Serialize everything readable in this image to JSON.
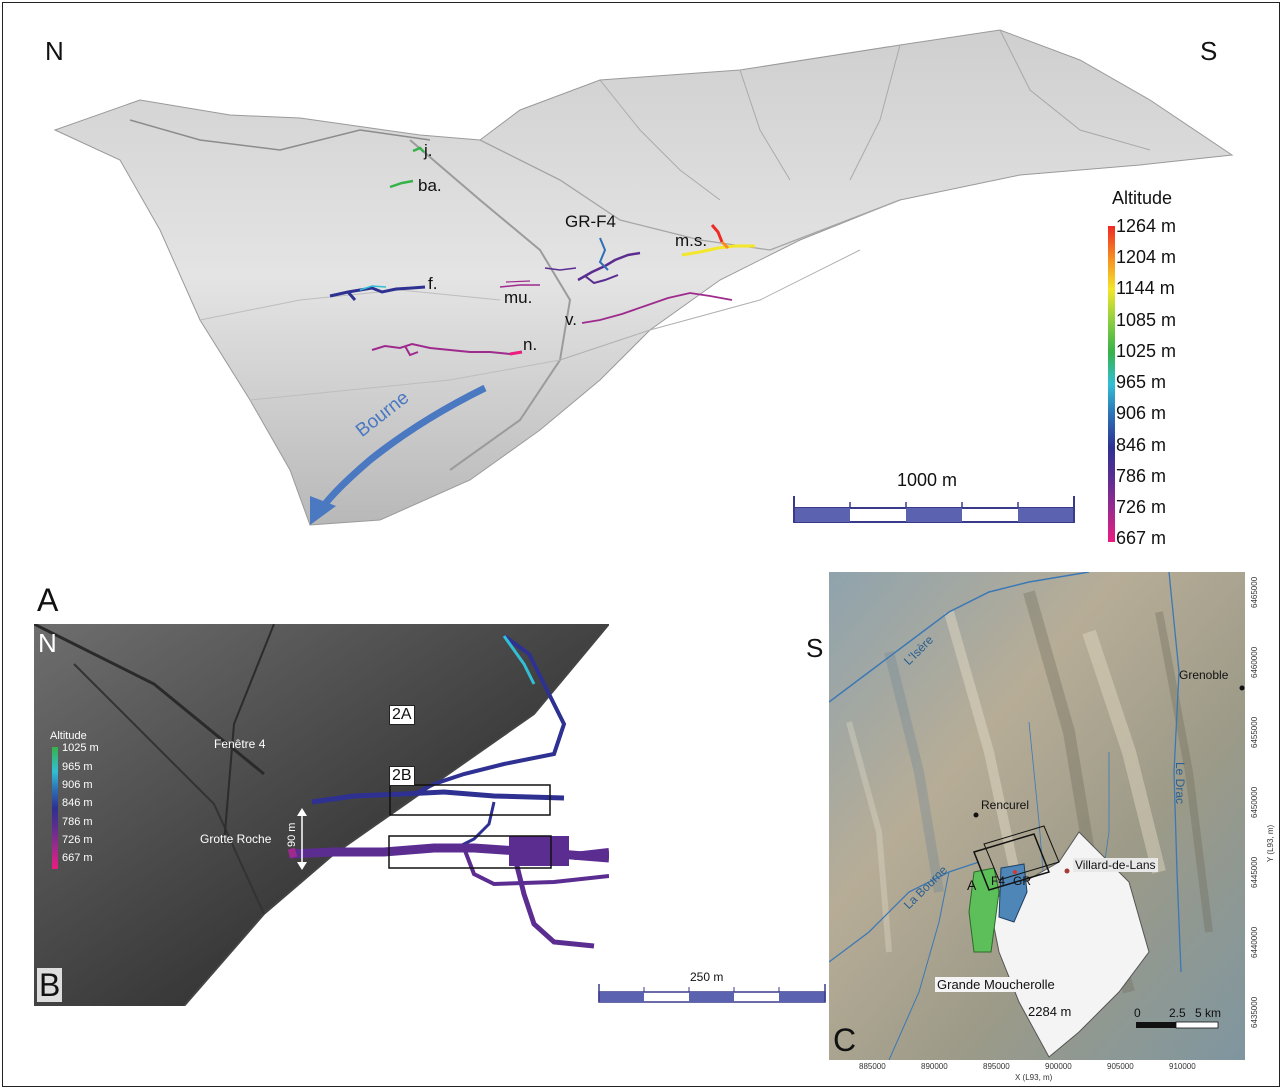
{
  "panel_a": {
    "letter": "A",
    "north": "N",
    "south": "S",
    "river_label": "Bourne",
    "cave_labels": {
      "j": "j.",
      "ba": "ba.",
      "gr_f4": "GR-F4",
      "ms": "m.s.",
      "f": "f.",
      "mu": "mu.",
      "v": "v.",
      "n": "n."
    },
    "legend": {
      "title": "Altitude",
      "ticks": [
        "1264 m",
        "1204 m",
        "1144 m",
        "1085 m",
        "1025 m",
        "965 m",
        "906 m",
        "846 m",
        "786 m",
        "726 m",
        "667 m"
      ],
      "colors": [
        "#ee2a24",
        "#f68c22",
        "#f4e62a",
        "#8ccf3f",
        "#36b24a",
        "#32bfd5",
        "#2d6fb5",
        "#2e3192",
        "#5c2d91",
        "#9e2a8d",
        "#ec1c80"
      ]
    },
    "scale": {
      "label": "1000 m"
    }
  },
  "panel_b": {
    "letter": "B",
    "north": "N",
    "box_labels": {
      "upper": "2A",
      "lower": "2B"
    },
    "entrances": {
      "upper": "Fenêtre 4",
      "lower": "Grotte Roche"
    },
    "height_label": "90 m",
    "legend": {
      "title": "Altitude",
      "ticks": [
        "1025 m",
        "965 m",
        "906 m",
        "846 m",
        "786 m",
        "726 m",
        "667 m"
      ],
      "colors": [
        "#36b24a",
        "#32bfd5",
        "#2d6fb5",
        "#2e3192",
        "#5c2d91",
        "#9e2a8d",
        "#ec1c80"
      ]
    },
    "scale": {
      "label": "250 m"
    }
  },
  "panel_c": {
    "letter": "C",
    "side_label": "S",
    "places": {
      "grenoble": "Grenoble",
      "rencurel": "Rencurel",
      "villard": "Villard-de-Lans",
      "moucherolle": "Grande Moucherolle",
      "moucherolle_alt": "2284 m"
    },
    "rivers": {
      "isere": "L'Isère",
      "drac": "Le Drac",
      "bourne": "La Bourne"
    },
    "zone_labels": {
      "a": "A",
      "f4": "F4",
      "gr": "GR"
    },
    "scale": {
      "zero": "0",
      "mid": "2.5",
      "end": "5 km"
    },
    "x_axis": {
      "label": "X (L93, m)",
      "ticks": [
        "885000",
        "890000",
        "895000",
        "900000",
        "905000",
        "910000"
      ]
    },
    "y_axis": {
      "label": "Y (L93, m)",
      "ticks": [
        "6465000",
        "6460000",
        "6455000",
        "6450000",
        "6445000",
        "6440000",
        "6435000"
      ]
    },
    "colors": {
      "relief": "#b8b39f",
      "water": "#3b78b5",
      "zone_f4": "#5cbf5a",
      "zone_gr": "#4f86b8"
    }
  }
}
